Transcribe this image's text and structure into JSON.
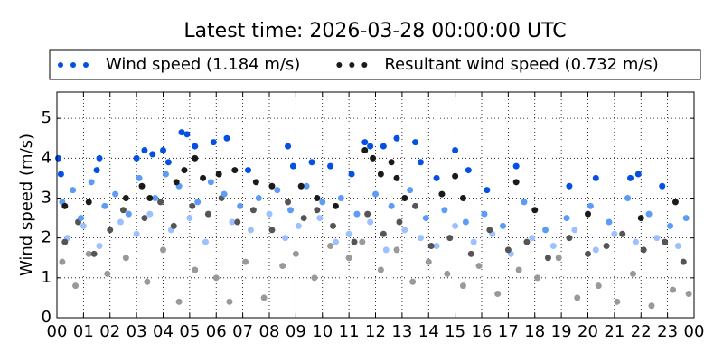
{
  "chart_data": {
    "type": "scatter",
    "title": "Latest time: 2026-03-28 00:00:00 UTC",
    "y_label": "Wind speed (m/s)",
    "xlim": [
      0,
      24
    ],
    "ylim": [
      0,
      5.66
    ],
    "xticks": [
      {
        "value": 0,
        "label": "00"
      },
      {
        "value": 1,
        "label": "01"
      },
      {
        "value": 2,
        "label": "02"
      },
      {
        "value": 3,
        "label": "03"
      },
      {
        "value": 4,
        "label": "04"
      },
      {
        "value": 5,
        "label": "05"
      },
      {
        "value": 6,
        "label": "06"
      },
      {
        "value": 7,
        "label": "07"
      },
      {
        "value": 8,
        "label": "08"
      },
      {
        "value": 9,
        "label": "09"
      },
      {
        "value": 10,
        "label": "10"
      },
      {
        "value": 11,
        "label": "11"
      },
      {
        "value": 12,
        "label": "12"
      },
      {
        "value": 13,
        "label": "13"
      },
      {
        "value": 14,
        "label": "14"
      },
      {
        "value": 15,
        "label": "15"
      },
      {
        "value": 16,
        "label": "16"
      },
      {
        "value": 17,
        "label": "17"
      },
      {
        "value": 18,
        "label": "18"
      },
      {
        "value": 19,
        "label": "19"
      },
      {
        "value": 20,
        "label": "20"
      },
      {
        "value": 21,
        "label": "21"
      },
      {
        "value": 22,
        "label": "22"
      },
      {
        "value": 23,
        "label": "23"
      },
      {
        "value": 24,
        "label": "00"
      }
    ],
    "yticks": [
      0,
      1,
      2,
      3,
      4,
      5
    ],
    "grid": true,
    "legend": "top",
    "series": [
      {
        "name": "Wind speed (1.184 m/s)",
        "color": "#0550e4",
        "x": [
          0.05,
          0.15,
          1.5,
          1.6,
          3.0,
          3.3,
          3.6,
          4.0,
          4.2,
          4.7,
          4.9,
          5.2,
          5.9,
          6.4,
          7.2,
          8.7,
          8.9,
          9.6,
          10.3,
          11.1,
          11.6,
          11.8,
          12.3,
          12.8,
          13.5,
          13.7,
          14.3,
          15.0,
          15.5,
          16.2,
          17.3,
          19.3,
          20.3,
          21.6,
          21.9,
          22.8
        ],
        "values": [
          4.0,
          3.6,
          3.7,
          4.0,
          4.0,
          4.2,
          4.1,
          4.2,
          3.9,
          4.65,
          4.6,
          4.3,
          4.4,
          4.5,
          3.7,
          4.3,
          3.8,
          3.9,
          3.8,
          3.6,
          4.4,
          4.3,
          4.3,
          4.5,
          4.4,
          3.9,
          3.5,
          4.2,
          3.7,
          3.2,
          3.8,
          3.3,
          3.5,
          3.5,
          3.6,
          3.3
        ]
      },
      {
        "name": "Resultant wind speed (0.732 m/s)",
        "color": "#1a1a1a",
        "x": [
          0.3,
          1.2,
          2.6,
          3.2,
          3.5,
          4.5,
          4.8,
          5.2,
          5.5,
          6.1,
          6.7,
          7.5,
          8.1,
          9.2,
          9.8,
          10.5,
          11.6,
          11.9,
          12.2,
          12.6,
          12.8,
          13.1,
          14.5,
          15.0,
          15.3,
          17.3,
          18.0,
          20.0,
          22.0,
          23.3
        ],
        "values": [
          2.8,
          2.9,
          3.0,
          3.3,
          3.0,
          3.4,
          3.7,
          4.0,
          3.5,
          3.6,
          3.7,
          3.4,
          3.3,
          3.3,
          3.0,
          2.8,
          4.2,
          4.0,
          3.6,
          3.9,
          3.5,
          3.0,
          3.1,
          3.55,
          3.0,
          3.4,
          2.7,
          2.6,
          2.5,
          2.9
        ]
      },
      {
        "color": "#5c9cf5",
        "x": [
          0.2,
          0.6,
          0.9,
          1.3,
          1.8,
          2.2,
          2.7,
          3.1,
          3.7,
          4.1,
          4.6,
          5.3,
          5.8,
          6.3,
          6.9,
          7.6,
          8.3,
          8.8,
          9.4,
          10.0,
          10.7,
          11.3,
          12.0,
          12.6,
          13.3,
          13.9,
          14.6,
          15.4,
          16.1,
          16.8,
          17.6,
          18.4,
          19.2,
          20.1,
          20.8,
          21.5,
          22.3,
          23.1,
          23.7
        ],
        "values": [
          2.9,
          3.2,
          2.5,
          3.4,
          2.8,
          3.1,
          2.6,
          3.5,
          3.0,
          3.6,
          3.3,
          2.9,
          3.4,
          3.1,
          2.8,
          3.0,
          3.2,
          2.7,
          3.3,
          2.9,
          3.0,
          2.6,
          3.1,
          2.8,
          3.2,
          2.5,
          2.7,
          2.4,
          2.6,
          2.3,
          2.9,
          2.2,
          2.5,
          2.8,
          2.4,
          3.0,
          2.6,
          2.3,
          2.5
        ]
      },
      {
        "color": "#555555",
        "x": [
          0.3,
          0.8,
          1.4,
          2.0,
          2.5,
          3.3,
          3.9,
          4.4,
          5.1,
          5.7,
          6.2,
          6.8,
          7.4,
          8.1,
          8.7,
          9.3,
          9.8,
          10.4,
          11.2,
          11.7,
          12.3,
          12.9,
          13.5,
          14.1,
          14.8,
          15.6,
          16.3,
          17.0,
          17.7,
          18.5,
          19.3,
          20.0,
          20.7,
          21.3,
          22.1,
          22.9,
          23.6
        ],
        "values": [
          1.9,
          2.4,
          1.6,
          2.2,
          2.7,
          2.5,
          2.9,
          2.3,
          2.8,
          2.6,
          3.0,
          2.4,
          2.7,
          2.2,
          2.9,
          2.5,
          2.7,
          2.3,
          1.9,
          2.6,
          2.1,
          2.4,
          2.8,
          1.8,
          2.0,
          1.6,
          2.2,
          1.7,
          1.9,
          1.5,
          2.0,
          1.6,
          1.8,
          2.1,
          1.7,
          1.9,
          1.4
        ]
      },
      {
        "color": "#9dc0ff",
        "x": [
          0.4,
          1.0,
          1.6,
          2.4,
          3.0,
          3.5,
          4.3,
          5.0,
          5.6,
          6.6,
          7.3,
          8.0,
          8.6,
          9.1,
          9.9,
          10.5,
          11.0,
          11.8,
          12.4,
          13.1,
          13.7,
          14.3,
          15.0,
          15.7,
          16.4,
          17.1,
          17.9,
          18.7,
          19.5,
          20.3,
          21.0,
          21.8,
          22.6,
          23.4
        ],
        "values": [
          2.0,
          2.3,
          1.8,
          2.4,
          2.1,
          2.6,
          2.2,
          2.5,
          1.9,
          2.4,
          2.2,
          2.6,
          2.0,
          2.3,
          2.5,
          1.9,
          2.1,
          2.4,
          1.7,
          2.2,
          2.0,
          1.8,
          2.3,
          1.9,
          2.1,
          1.6,
          2.0,
          1.8,
          2.2,
          1.7,
          2.1,
          1.9,
          2.0,
          1.8
        ]
      },
      {
        "color": "#999999",
        "x": [
          0.2,
          0.7,
          1.2,
          1.9,
          2.6,
          3.4,
          4.0,
          4.6,
          5.2,
          6.0,
          6.5,
          7.1,
          7.8,
          8.5,
          9.0,
          9.7,
          10.3,
          11.0,
          11.5,
          12.2,
          12.8,
          13.4,
          14.0,
          14.7,
          15.3,
          15.9,
          16.6,
          17.4,
          18.1,
          18.9,
          19.6,
          20.4,
          21.1,
          21.7,
          22.4,
          23.2,
          23.8
        ],
        "values": [
          1.4,
          0.8,
          1.6,
          1.1,
          1.5,
          0.9,
          1.7,
          0.4,
          1.2,
          1.0,
          0.4,
          1.4,
          0.5,
          1.3,
          1.6,
          1.0,
          1.8,
          1.5,
          1.9,
          1.2,
          1.7,
          0.9,
          1.4,
          1.1,
          0.8,
          1.3,
          0.6,
          1.2,
          1.0,
          1.5,
          0.5,
          0.8,
          0.4,
          1.1,
          0.3,
          0.7,
          0.6
        ]
      }
    ]
  }
}
